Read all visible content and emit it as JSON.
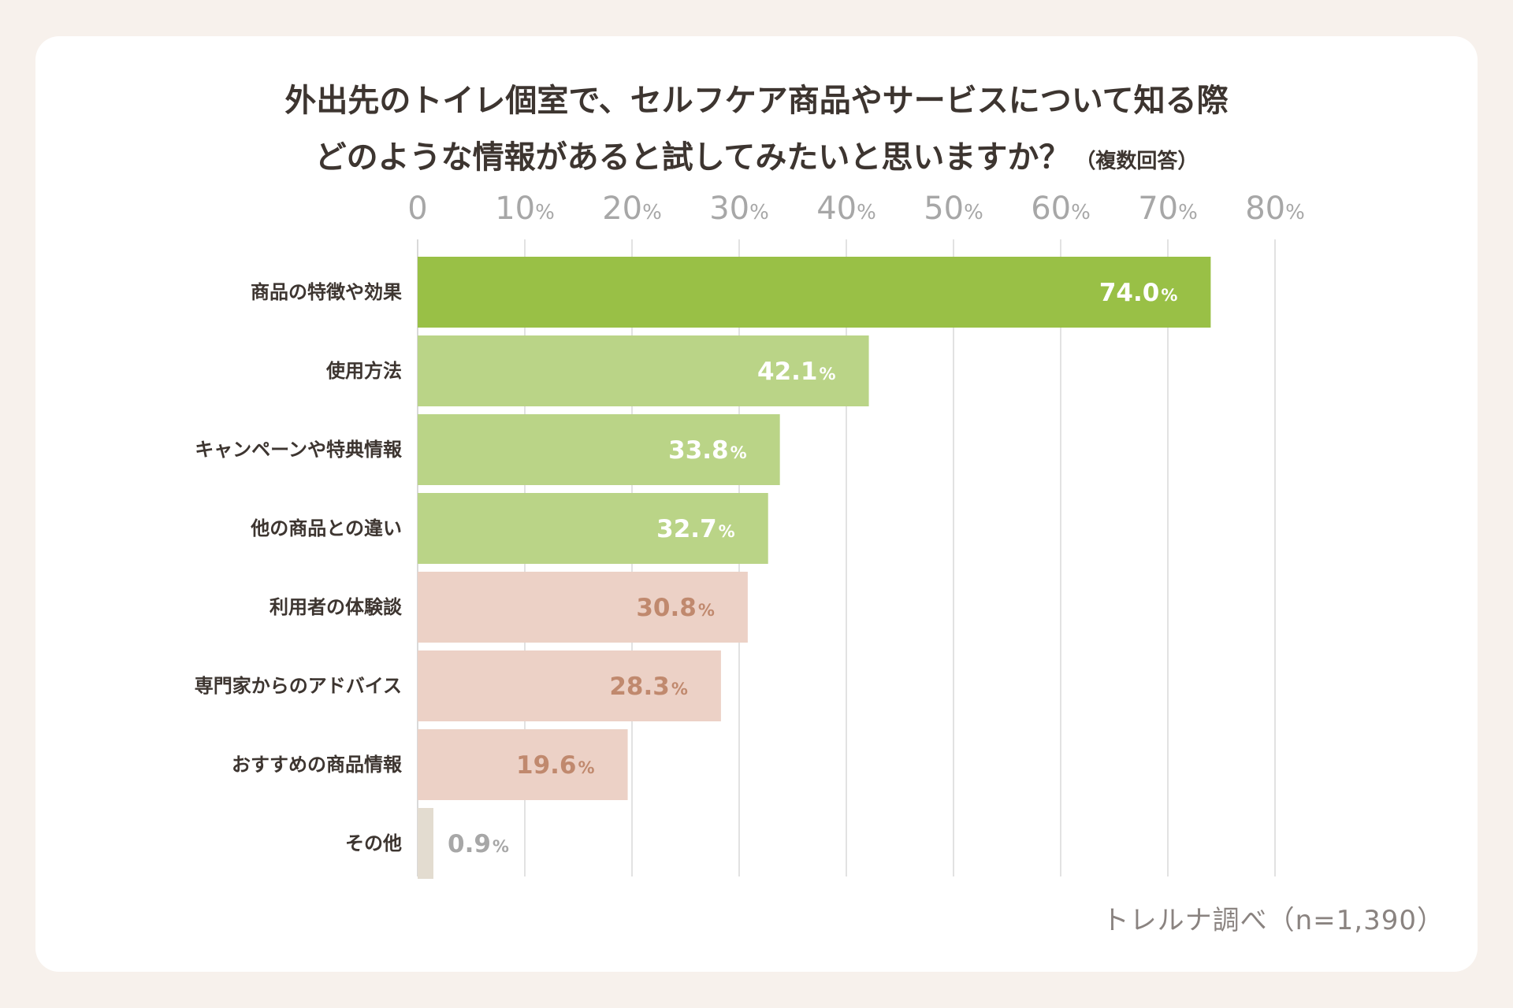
{
  "title": {
    "line1": "外出先のトイレ個室で、セルフケア商品やサービスについて知る際",
    "line2": "どのような情報があると試してみたいと思いますか？",
    "note": "（複数回答）"
  },
  "source": "トレルナ調べ（n=1,390）",
  "colors": {
    "dark_green": "#99c046",
    "light_green": "#bad487",
    "pink": "#ecd1c6",
    "beige": "#e3dcd0",
    "pink_label": "#c0896e",
    "grid": "#d9d9d9",
    "tick": "#a7a7a7"
  },
  "chart_data": {
    "type": "bar",
    "orientation": "horizontal",
    "categories": [
      "商品の特徴や効果",
      "使用方法",
      "キャンペーンや特典情報",
      "他の商品との違い",
      "利用者の体験談",
      "専門家からのアドバイス",
      "おすすめの商品情報",
      "その他"
    ],
    "values": [
      74.0,
      42.1,
      33.8,
      32.7,
      30.8,
      28.3,
      19.6,
      0.9
    ],
    "value_labels": [
      "74.0",
      "42.1",
      "33.8",
      "32.7",
      "30.8",
      "28.3",
      "19.6",
      "0.9"
    ],
    "value_unit": "%",
    "xlim": [
      0,
      80
    ],
    "xticks": [
      0,
      10,
      20,
      30,
      40,
      50,
      60,
      70,
      80
    ],
    "xtick_labels": [
      "0",
      "10",
      "20",
      "30",
      "40",
      "50",
      "60",
      "70",
      "80"
    ],
    "xtick_unit": "%",
    "grid": true,
    "bar_colors": [
      "dark_green",
      "light_green",
      "light_green",
      "light_green",
      "pink",
      "pink",
      "pink",
      "beige"
    ],
    "label_colors": [
      "#ffffff",
      "#ffffff",
      "#ffffff",
      "#ffffff",
      "#c0896e",
      "#c0896e",
      "#c0896e",
      "#a7a7a7"
    ]
  }
}
